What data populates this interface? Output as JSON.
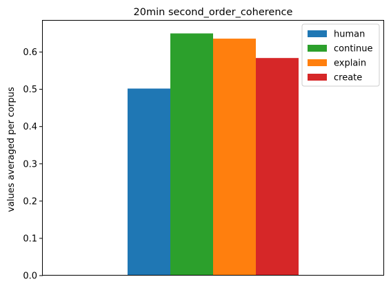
{
  "chart_data": {
    "type": "bar",
    "title": "20min second_order_coherence",
    "xlabel": "",
    "ylabel": "values averaged per corpus",
    "ylim": [
      0,
      0.6842
    ],
    "yticks": [
      0.0,
      0.1,
      0.2,
      0.3,
      0.4,
      0.5,
      0.6
    ],
    "ytick_labels": [
      "0.0",
      "0.1",
      "0.2",
      "0.3",
      "0.4",
      "0.5",
      "0.6"
    ],
    "grid": false,
    "legend_position": "top-right",
    "series": [
      {
        "name": "human",
        "value": 0.502,
        "color": "#1f77b4"
      },
      {
        "name": "continue",
        "value": 0.65,
        "color": "#2ca02c"
      },
      {
        "name": "explain",
        "value": 0.636,
        "color": "#ff7f0e"
      },
      {
        "name": "create",
        "value": 0.584,
        "color": "#d62728"
      }
    ]
  }
}
